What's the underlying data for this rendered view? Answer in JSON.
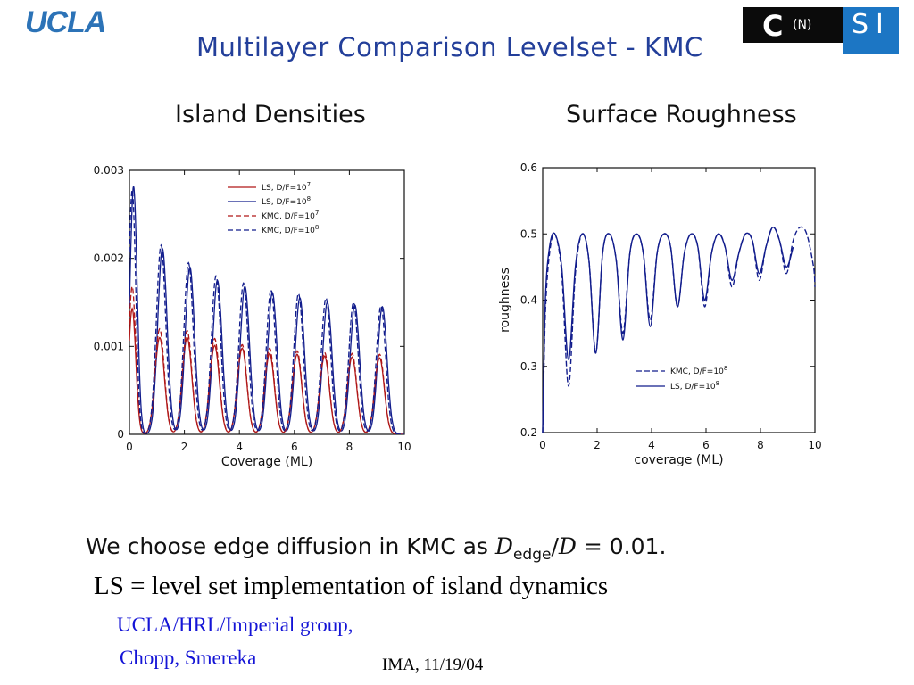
{
  "header": {
    "ucla_logo": "UCLA",
    "cnsi_logo": "CNSI",
    "title": "Multilayer Comparison Levelset - KMC"
  },
  "panels": {
    "left_title": "Island Densities",
    "right_title": "Surface Roughness"
  },
  "colors": {
    "title_blue": "#233f9a",
    "credit_blue": "#1414d6",
    "series_red": "#b01818",
    "series_blue": "#111c8c",
    "ucla_blue": "#2c73b7",
    "cnsi_blue": "#1c76c4"
  },
  "chart_data": [
    {
      "type": "line",
      "title": "Island Densities",
      "xlabel": "Coverage (ML)",
      "ylabel": "",
      "xlim": [
        0,
        10
      ],
      "ylim": [
        0,
        0.003
      ],
      "xticks": [
        "0",
        "2",
        "4",
        "6",
        "8",
        "10"
      ],
      "yticks": [
        "0",
        "0.001",
        "0.002",
        "0.003"
      ],
      "legend_position": "top-right",
      "series": [
        {
          "name": "LS, D/F=10^7",
          "color": "#b01818",
          "dash": "solid",
          "peak_x": [
            0.1,
            1.1,
            2.1,
            3.1,
            4.1,
            5.1,
            6.1,
            7.1,
            8.1,
            9.1
          ],
          "peak_y": [
            0.00143,
            0.0011,
            0.0011,
            0.00101,
            0.00098,
            0.00092,
            0.00091,
            0.00089,
            0.00088,
            0.00087
          ]
        },
        {
          "name": "LS, D/F=10^8",
          "color": "#111c8c",
          "dash": "solid",
          "peak_x": [
            0.15,
            1.2,
            2.2,
            3.2,
            4.2,
            5.2,
            6.2,
            7.2,
            8.2,
            9.2
          ],
          "peak_y": [
            0.00282,
            0.00211,
            0.0019,
            0.00175,
            0.00168,
            0.00161,
            0.00155,
            0.0015,
            0.00147,
            0.00145
          ]
        },
        {
          "name": "KMC, D/F=10^7",
          "color": "#b01818",
          "dash": "dashed",
          "peak_x": [
            0.1,
            1.1,
            2.1,
            3.1,
            4.1,
            5.1,
            6.1,
            7.1,
            8.1,
            9.1
          ],
          "peak_y": [
            0.00168,
            0.0012,
            0.00118,
            0.00109,
            0.00102,
            0.00098,
            0.00095,
            0.00093,
            0.00092,
            0.00091
          ]
        },
        {
          "name": "KMC, D/F=10^8",
          "color": "#111c8c",
          "dash": "dashed",
          "peak_x": [
            0.1,
            1.15,
            2.15,
            3.15,
            4.15,
            5.15,
            6.15,
            7.15,
            8.15,
            9.15
          ],
          "peak_y": [
            0.00278,
            0.00215,
            0.00195,
            0.0018,
            0.00172,
            0.00165,
            0.0016,
            0.00155,
            0.0015,
            0.00146
          ]
        }
      ]
    },
    {
      "type": "line",
      "title": "Surface Roughness",
      "xlabel": "coverage (ML)",
      "ylabel": "roughness",
      "xlim": [
        0,
        10
      ],
      "ylim": [
        0.2,
        0.6
      ],
      "xticks": [
        "0",
        "2",
        "4",
        "6",
        "8",
        "10"
      ],
      "yticks": [
        "0.2",
        "0.3",
        "0.4",
        "0.5",
        "0.6"
      ],
      "legend_position": "bottom-right",
      "series": [
        {
          "name": "KMC, D/F=10^8",
          "color": "#111c8c",
          "dash": "dashed",
          "x": [
            0,
            0.1,
            0.25,
            0.45,
            0.7,
            0.95,
            1.2,
            1.45,
            1.7,
            1.95,
            2.2,
            2.45,
            2.7,
            2.95,
            3.2,
            3.45,
            3.7,
            3.95,
            4.2,
            4.45,
            4.7,
            4.95,
            5.2,
            5.45,
            5.7,
            5.95,
            6.2,
            6.45,
            6.7,
            6.95,
            7.2,
            7.45,
            7.7,
            7.95,
            8.2,
            8.45,
            8.7,
            8.95,
            9.2,
            9.45,
            9.7,
            9.95,
            10
          ],
          "y": [
            0.2,
            0.38,
            0.47,
            0.5,
            0.44,
            0.27,
            0.44,
            0.5,
            0.46,
            0.32,
            0.47,
            0.5,
            0.46,
            0.35,
            0.47,
            0.5,
            0.47,
            0.37,
            0.47,
            0.5,
            0.48,
            0.39,
            0.47,
            0.5,
            0.48,
            0.39,
            0.47,
            0.5,
            0.48,
            0.42,
            0.47,
            0.5,
            0.49,
            0.43,
            0.48,
            0.51,
            0.49,
            0.44,
            0.49,
            0.51,
            0.5,
            0.45,
            0.42
          ]
        },
        {
          "name": "LS, D/F=10^8",
          "color": "#111c8c",
          "dash": "solid",
          "x": [
            0,
            0.1,
            0.25,
            0.45,
            0.7,
            0.95,
            1.2,
            1.45,
            1.7,
            1.95,
            2.2,
            2.45,
            2.7,
            2.95,
            3.2,
            3.45,
            3.7,
            3.95,
            4.2,
            4.45,
            4.7,
            4.95,
            5.2,
            5.45,
            5.7,
            5.95,
            6.2,
            6.45,
            6.7,
            6.95,
            7.2,
            7.45,
            7.7,
            7.95,
            8.2,
            8.45,
            8.7,
            8.95,
            9.2
          ],
          "y": [
            0.2,
            0.4,
            0.48,
            0.5,
            0.45,
            0.31,
            0.45,
            0.5,
            0.46,
            0.32,
            0.47,
            0.5,
            0.46,
            0.34,
            0.47,
            0.5,
            0.47,
            0.36,
            0.47,
            0.5,
            0.48,
            0.39,
            0.47,
            0.5,
            0.48,
            0.4,
            0.47,
            0.5,
            0.48,
            0.43,
            0.47,
            0.5,
            0.49,
            0.44,
            0.48,
            0.51,
            0.49,
            0.45,
            0.48
          ]
        }
      ]
    }
  ],
  "body": {
    "sentence_prefix": "We choose edge diffusion in KMC as ",
    "math_D1": "D",
    "math_sub": "edge",
    "math_slash": "/",
    "math_D2": "D",
    "math_rest": " = 0.01.",
    "ls_definition": "LS = level set implementation of island dynamics",
    "credit_line1": "UCLA/HRL/Imperial group,",
    "credit_line2": "Chopp, Smereka",
    "footer": "IMA, 11/19/04"
  }
}
